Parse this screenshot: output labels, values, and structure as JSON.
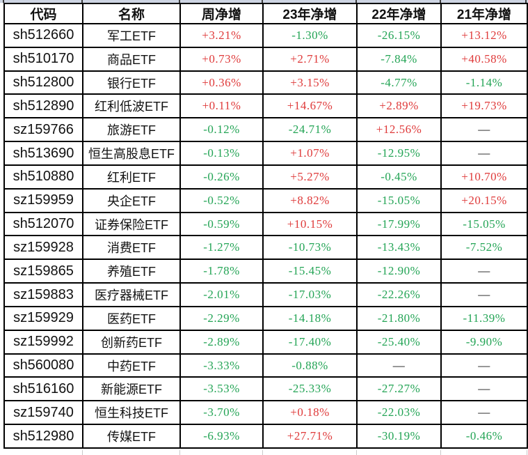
{
  "chart_data": {
    "type": "table",
    "columns": [
      {
        "key": "code",
        "label": "代码"
      },
      {
        "key": "name",
        "label": "名称"
      },
      {
        "key": "week",
        "label": "周净增"
      },
      {
        "key": "y23",
        "label": "23年净增"
      },
      {
        "key": "y22",
        "label": "22年净增"
      },
      {
        "key": "y21",
        "label": "21年净增"
      }
    ],
    "rows": [
      {
        "code": "sh512660",
        "name": "军工ETF",
        "week": "+3.21%",
        "y23": "-1.30%",
        "y22": "-26.15%",
        "y21": "+13.12%"
      },
      {
        "code": "sh510170",
        "name": "商品ETF",
        "week": "+0.73%",
        "y23": "+2.71%",
        "y22": "-7.84%",
        "y21": "+40.58%"
      },
      {
        "code": "sh512800",
        "name": "银行ETF",
        "week": "+0.36%",
        "y23": "+3.15%",
        "y22": "-4.77%",
        "y21": "-1.14%"
      },
      {
        "code": "sh512890",
        "name": "红利低波ETF",
        "week": "+0.11%",
        "y23": "+14.67%",
        "y22": "+2.89%",
        "y21": "+19.73%"
      },
      {
        "code": "sz159766",
        "name": "旅游ETF",
        "week": "-0.12%",
        "y23": "-24.71%",
        "y22": "+12.56%",
        "y21": "—"
      },
      {
        "code": "sh513690",
        "name": "恒生高股息ETF",
        "week": "-0.13%",
        "y23": "+1.07%",
        "y22": "-12.95%",
        "y21": "—"
      },
      {
        "code": "sh510880",
        "name": "红利ETF",
        "week": "-0.26%",
        "y23": "+5.27%",
        "y22": "-0.45%",
        "y21": "+10.70%"
      },
      {
        "code": "sz159959",
        "name": "央企ETF",
        "week": "-0.52%",
        "y23": "+8.82%",
        "y22": "-15.05%",
        "y21": "+20.15%"
      },
      {
        "code": "sh512070",
        "name": "证券保险ETF",
        "week": "-0.59%",
        "y23": "+10.15%",
        "y22": "-17.99%",
        "y21": "-15.05%"
      },
      {
        "code": "sz159928",
        "name": "消费ETF",
        "week": "-1.27%",
        "y23": "-10.73%",
        "y22": "-13.43%",
        "y21": "-7.52%"
      },
      {
        "code": "sz159865",
        "name": "养殖ETF",
        "week": "-1.78%",
        "y23": "-15.45%",
        "y22": "-12.90%",
        "y21": "—"
      },
      {
        "code": "sz159883",
        "name": "医疗器械ETF",
        "week": "-2.01%",
        "y23": "-17.03%",
        "y22": "-22.26%",
        "y21": "—"
      },
      {
        "code": "sz159929",
        "name": "医药ETF",
        "week": "-2.29%",
        "y23": "-14.18%",
        "y22": "-21.80%",
        "y21": "-11.39%"
      },
      {
        "code": "sz159992",
        "name": "创新药ETF",
        "week": "-2.89%",
        "y23": "-17.40%",
        "y22": "-25.40%",
        "y21": "-9.90%"
      },
      {
        "code": "sh560080",
        "name": "中药ETF",
        "week": "-3.33%",
        "y23": "-0.88%",
        "y22": "—",
        "y21": "—"
      },
      {
        "code": "sh516160",
        "name": "新能源ETF",
        "week": "-3.53%",
        "y23": "-25.33%",
        "y22": "-27.27%",
        "y21": "—"
      },
      {
        "code": "sz159740",
        "name": "恒生科技ETF",
        "week": "-3.70%",
        "y23": "+0.18%",
        "y22": "-22.03%",
        "y21": "—"
      },
      {
        "code": "sh512980",
        "name": "传媒ETF",
        "week": "-6.93%",
        "y23": "+27.71%",
        "y22": "-30.19%",
        "y21": "-0.46%"
      }
    ],
    "colors": {
      "positive": "#df3a3a",
      "negative": "#23a455",
      "dash": "#111111",
      "border": "#000000",
      "header_text": "#111111"
    },
    "layout_hints": {
      "grid": "on",
      "legend_position": "none"
    }
  }
}
